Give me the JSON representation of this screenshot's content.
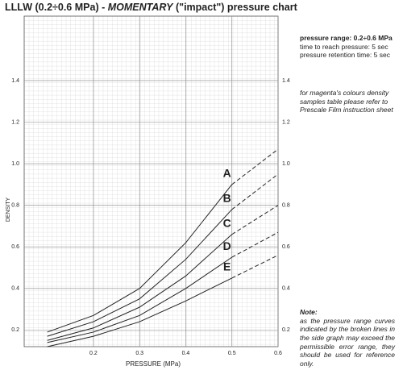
{
  "chart_data": {
    "type": "line",
    "title": [
      "LLLW (0.2÷0.6 MPa) - ",
      "MOMENTARY",
      " (\"impact\") pressure chart"
    ],
    "x_label": "PRESSURE (MPa)",
    "y_label": "DENSITY",
    "x": [
      0.1,
      0.2,
      0.3,
      0.4,
      0.5,
      0.6
    ],
    "dashed_from_index": 4,
    "series": [
      {
        "name": "A",
        "color": "#222",
        "values": [
          0.19,
          0.27,
          0.4,
          0.62,
          0.9,
          1.07
        ]
      },
      {
        "name": "B",
        "color": "#222",
        "values": [
          0.17,
          0.24,
          0.35,
          0.54,
          0.78,
          0.95
        ]
      },
      {
        "name": "C",
        "color": "#222",
        "values": [
          0.15,
          0.21,
          0.31,
          0.46,
          0.66,
          0.8
        ]
      },
      {
        "name": "D",
        "color": "#222",
        "values": [
          0.14,
          0.19,
          0.27,
          0.4,
          0.55,
          0.67
        ]
      },
      {
        "name": "E",
        "color": "#222",
        "values": [
          0.12,
          0.17,
          0.24,
          0.34,
          0.45,
          0.56
        ]
      }
    ],
    "xlim": [
      0.05,
      0.6
    ],
    "ylim": [
      0.12,
      1.71
    ],
    "xticks": [
      0.2,
      0.3,
      0.4,
      0.5,
      0.6
    ],
    "yticks": [
      0.2,
      0.4,
      0.6,
      0.8,
      {
        "value": 1.0,
        "label": "1.0"
      },
      1.2,
      1.4
    ],
    "grid": true
  },
  "notes": {
    "conditions": [
      "pressure range: 0.2÷0.6 MPa",
      "time to reach pressure: 5 sec",
      "pressure retention time: 5 sec"
    ],
    "reference": "for magenta's colours density samples table please refer to Prescale Film instruction sheet",
    "note_title": "Note:",
    "note_text": "as the pressure range curves indicated by the broken lines in the side graph may exceed the permissible error range, they should be used for reference only."
  }
}
